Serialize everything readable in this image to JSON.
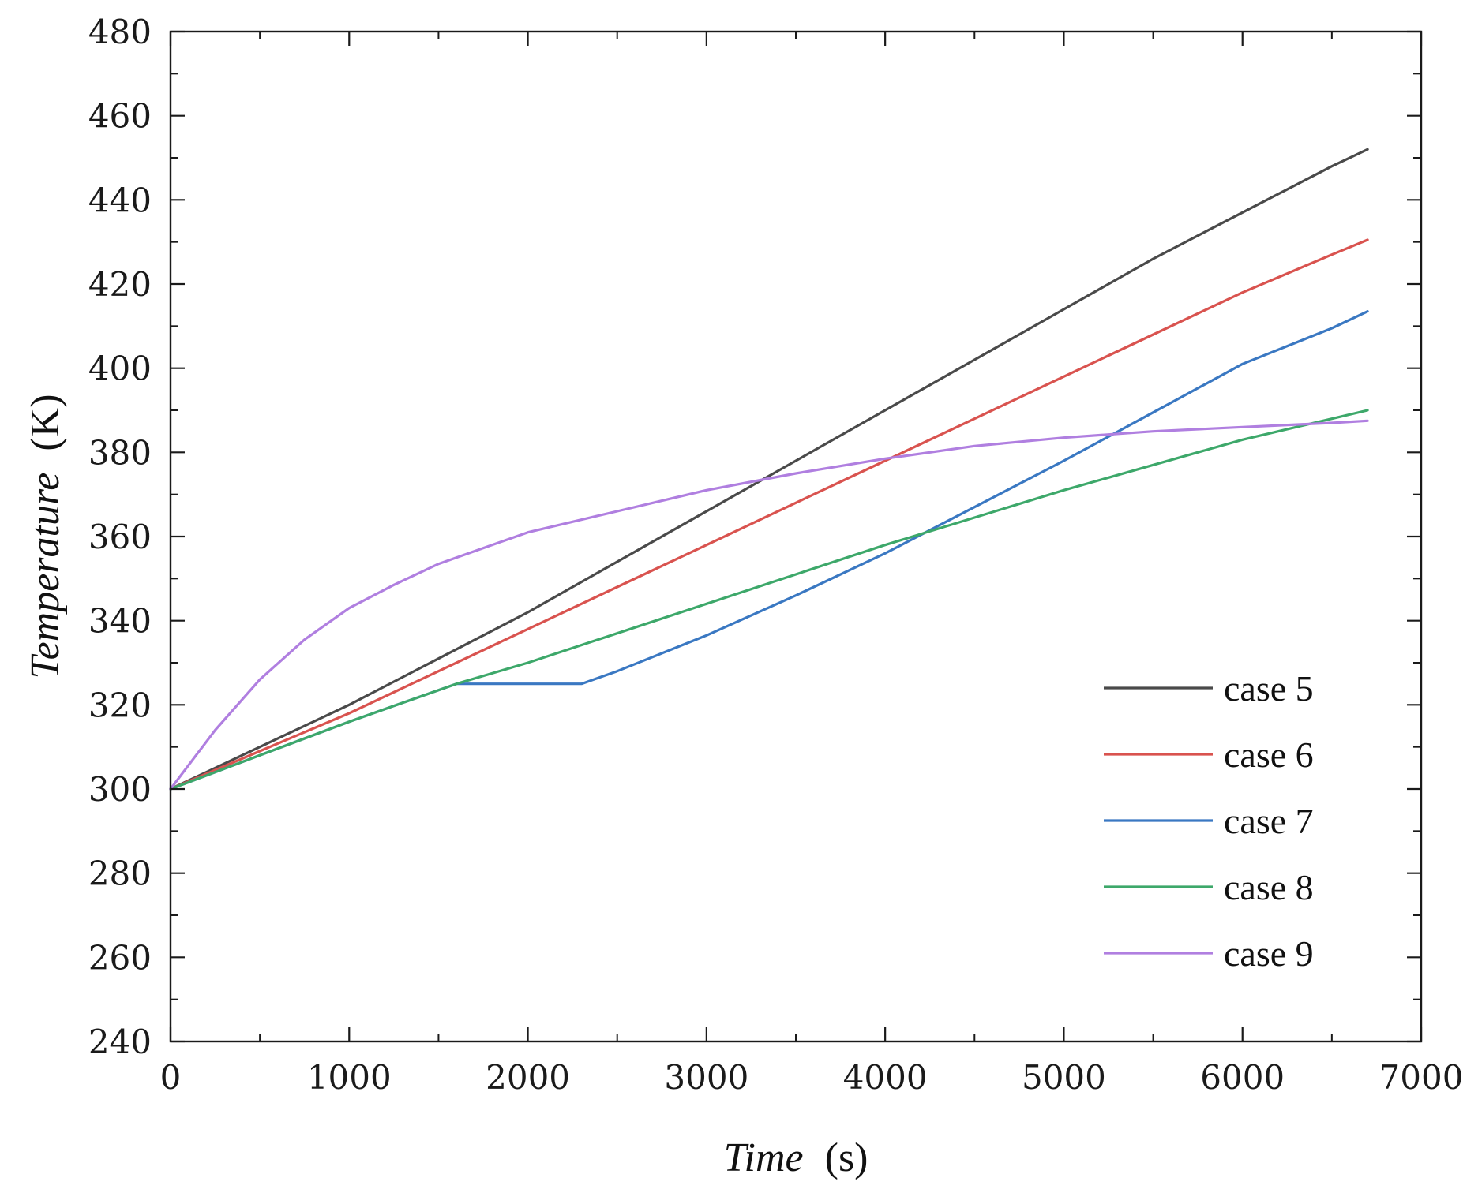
{
  "chart_data": {
    "type": "line",
    "xlabel_italic": "Time",
    "xlabel_unit": "(s)",
    "ylabel_italic": "Temperature",
    "ylabel_unit": "(K)",
    "xlim": [
      0,
      7000
    ],
    "ylim": [
      240,
      480
    ],
    "xticks": [
      "0",
      "1000",
      "2000",
      "3000",
      "4000",
      "5000",
      "6000",
      "7000"
    ],
    "yticks": [
      "240",
      "260",
      "280",
      "300",
      "320",
      "340",
      "360",
      "380",
      "400",
      "420",
      "440",
      "460",
      "480"
    ],
    "grid": false,
    "legend_position": "bottom-right",
    "series": [
      {
        "name": "case 5",
        "color": "#4a4a4a",
        "x": [
          0,
          500,
          1000,
          1500,
          2000,
          2500,
          3000,
          3500,
          4000,
          4500,
          5000,
          5500,
          6000,
          6500,
          6700
        ],
        "y": [
          300,
          310,
          320,
          331,
          342,
          354,
          366,
          378,
          390,
          402,
          414,
          426,
          437,
          448,
          452
        ]
      },
      {
        "name": "case 6",
        "color": "#d9534f",
        "x": [
          0,
          500,
          1000,
          1500,
          2000,
          2500,
          3000,
          3500,
          4000,
          4500,
          5000,
          5500,
          6000,
          6500,
          6700
        ],
        "y": [
          300,
          309,
          318,
          328,
          338,
          348,
          358,
          368,
          378,
          388,
          398,
          408,
          418,
          427,
          430.5
        ]
      },
      {
        "name": "case 7",
        "color": "#3a78c2",
        "x": [
          0,
          500,
          1000,
          1500,
          1600,
          2300,
          2500,
          3000,
          3500,
          4000,
          4500,
          5000,
          5500,
          6000,
          6500,
          6700
        ],
        "y": [
          300,
          308,
          316,
          323.5,
          325,
          325,
          328,
          336.5,
          346,
          356,
          367,
          378,
          389.5,
          401,
          409.5,
          413.5
        ]
      },
      {
        "name": "case 8",
        "color": "#3da86a",
        "x": [
          0,
          500,
          1000,
          1500,
          1600,
          2000,
          2500,
          3000,
          3500,
          4000,
          4500,
          5000,
          5500,
          6000,
          6500,
          6700
        ],
        "y": [
          300,
          308,
          316,
          323.5,
          325,
          330,
          337,
          344,
          351,
          358,
          364.5,
          371,
          377,
          383,
          388,
          390
        ]
      },
      {
        "name": "case 9",
        "color": "#b07fe0",
        "x": [
          0,
          250,
          500,
          750,
          1000,
          1250,
          1500,
          2000,
          2500,
          3000,
          3500,
          4000,
          4500,
          5000,
          5500,
          6000,
          6500,
          6700
        ],
        "y": [
          300,
          314,
          326,
          335.5,
          343,
          348.5,
          353.5,
          361,
          366,
          371,
          375,
          378.5,
          381.5,
          383.5,
          385,
          386,
          387,
          387.5
        ]
      }
    ]
  }
}
